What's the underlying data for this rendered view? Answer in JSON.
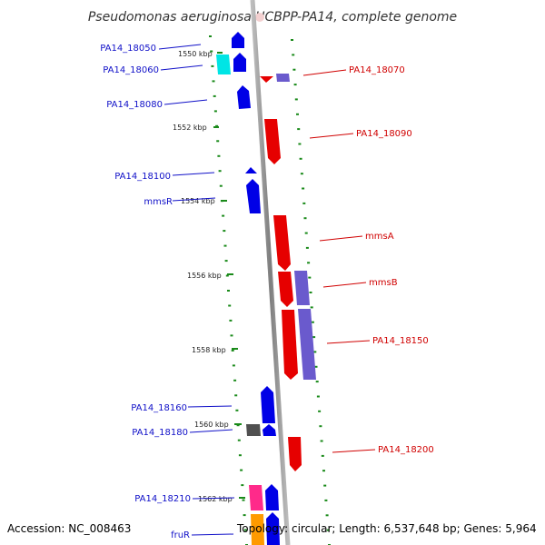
{
  "title": "Pseudomonas aeruginosa UCBPP-PA14, complete genome",
  "footer": {
    "accession": "Accession: NC_008463",
    "summary": "Topology: circular; Length: 6,537,648 bp; Genes: 5,964"
  },
  "ticks": [
    "1550 kbp",
    "1552 kbp",
    "1554 kbp",
    "1556 kbp",
    "1558 kbp",
    "1560 kbp",
    "1562 kbp"
  ],
  "left_genes": [
    "PA14_18050",
    "PA14_18060",
    "PA14_18080",
    "PA14_18100",
    "mmsR",
    "PA14_18160",
    "PA14_18180",
    "PA14_18210",
    "fruR"
  ],
  "right_genes": [
    "PA14_18070",
    "PA14_18090",
    "mmsA",
    "mmsB",
    "PA14_18150",
    "PA14_18200"
  ],
  "colors": {
    "forward_strand": "#0000e6",
    "reverse_strand": "#e60000",
    "slate_feature": "#6a5acd",
    "cyan_feature": "#00e5e5",
    "gray_feature": "#505050",
    "pink_feature": "#ff2a8a",
    "orange_feature": "#ff9a00",
    "dots": "#1a8a1a",
    "axis": "#8c8c8c"
  }
}
